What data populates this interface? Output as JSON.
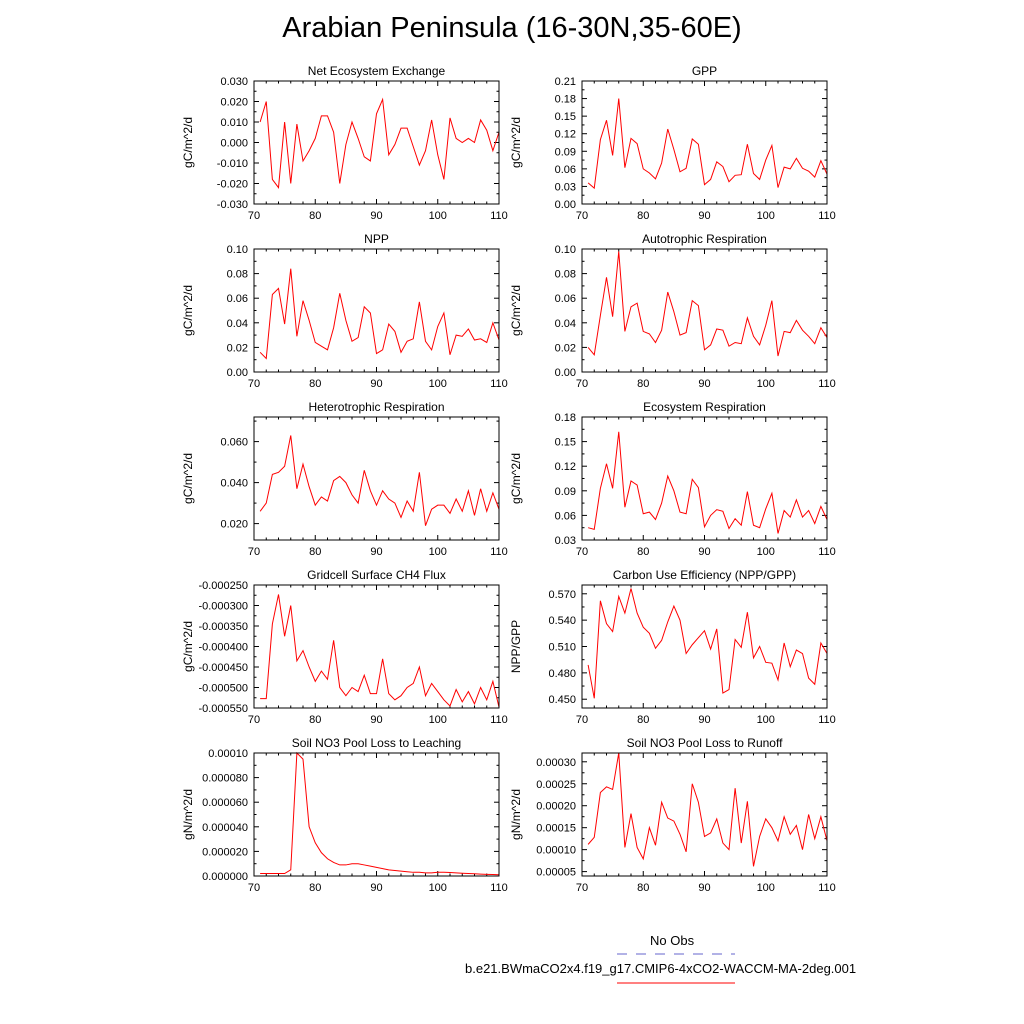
{
  "title": "Arabian Peninsula (16-30N,35-60E)",
  "colors": {
    "series": "#ff0000",
    "obs": "#6666cc",
    "axis": "#000000"
  },
  "legend": {
    "obs_label": "No Obs",
    "model_label": "b.e21.BWmaCO2x4.f19_g17.CMIP6-4xCO2-WACCM-MA-2deg.001"
  },
  "chart_data": [
    {
      "type": "line",
      "title": "Net Ecosystem Exchange",
      "ylabel": "gC/m^2/d",
      "xlim": [
        70,
        110
      ],
      "ylim": [
        -0.03,
        0.03
      ],
      "xticks": [
        70,
        80,
        90,
        100,
        110
      ],
      "yticks": [
        -0.03,
        -0.02,
        -0.01,
        0.0,
        0.01,
        0.02,
        0.03
      ],
      "ytick_labels": [
        "-0.030",
        "-0.020",
        "-0.010",
        "0.000",
        "0.010",
        "0.020",
        "0.030"
      ],
      "x": [
        71,
        72,
        73,
        74,
        75,
        76,
        77,
        78,
        79,
        80,
        81,
        82,
        83,
        84,
        85,
        86,
        87,
        88,
        89,
        90,
        91,
        92,
        93,
        94,
        95,
        96,
        97,
        98,
        99,
        100,
        101,
        102,
        103,
        104,
        105,
        106,
        107,
        108,
        109,
        110
      ],
      "values": [
        0.01,
        0.02,
        -0.018,
        -0.022,
        0.01,
        -0.02,
        0.009,
        -0.009,
        -0.004,
        0.002,
        0.013,
        0.013,
        0.005,
        -0.02,
        -0.001,
        0.01,
        0.002,
        -0.007,
        -0.009,
        0.014,
        0.021,
        -0.006,
        -0.001,
        0.007,
        0.007,
        -0.002,
        -0.011,
        -0.004,
        0.011,
        -0.006,
        -0.018,
        0.012,
        0.002,
        0.0,
        0.002,
        0.0,
        0.011,
        0.006,
        -0.004,
        0.005
      ]
    },
    {
      "type": "line",
      "title": "GPP",
      "ylabel": "gC/m^2/d",
      "xlim": [
        70,
        110
      ],
      "ylim": [
        0,
        0.21
      ],
      "xticks": [
        70,
        80,
        90,
        100,
        110
      ],
      "yticks": [
        0,
        0.03,
        0.06,
        0.09,
        0.12,
        0.15,
        0.18,
        0.21
      ],
      "ytick_labels": [
        "0.00",
        "0.03",
        "0.06",
        "0.09",
        "0.12",
        "0.15",
        "0.18",
        "0.21"
      ],
      "x": [
        71,
        72,
        73,
        74,
        75,
        76,
        77,
        78,
        79,
        80,
        81,
        82,
        83,
        84,
        85,
        86,
        87,
        88,
        89,
        90,
        91,
        92,
        93,
        94,
        95,
        96,
        97,
        98,
        99,
        100,
        101,
        102,
        103,
        104,
        105,
        106,
        107,
        108,
        109,
        110
      ],
      "values": [
        0.036,
        0.027,
        0.11,
        0.143,
        0.083,
        0.18,
        0.062,
        0.112,
        0.103,
        0.06,
        0.053,
        0.043,
        0.07,
        0.128,
        0.093,
        0.055,
        0.061,
        0.111,
        0.102,
        0.033,
        0.042,
        0.072,
        0.064,
        0.038,
        0.049,
        0.05,
        0.102,
        0.052,
        0.042,
        0.075,
        0.1,
        0.028,
        0.063,
        0.06,
        0.078,
        0.061,
        0.056,
        0.046,
        0.074,
        0.051
      ]
    },
    {
      "type": "line",
      "title": "NPP",
      "ylabel": "gC/m^2/d",
      "xlim": [
        70,
        110
      ],
      "ylim": [
        0,
        0.1
      ],
      "xticks": [
        70,
        80,
        90,
        100,
        110
      ],
      "yticks": [
        0,
        0.02,
        0.04,
        0.06,
        0.08,
        0.1
      ],
      "ytick_labels": [
        "0.00",
        "0.02",
        "0.04",
        "0.06",
        "0.08",
        "0.10"
      ],
      "x": [
        71,
        72,
        73,
        74,
        75,
        76,
        77,
        78,
        79,
        80,
        81,
        82,
        83,
        84,
        85,
        86,
        87,
        88,
        89,
        90,
        91,
        92,
        93,
        94,
        95,
        96,
        97,
        98,
        99,
        100,
        101,
        102,
        103,
        104,
        105,
        106,
        107,
        108,
        109,
        110
      ],
      "values": [
        0.016,
        0.011,
        0.063,
        0.068,
        0.039,
        0.084,
        0.029,
        0.058,
        0.042,
        0.024,
        0.021,
        0.018,
        0.036,
        0.064,
        0.042,
        0.025,
        0.028,
        0.053,
        0.048,
        0.015,
        0.018,
        0.039,
        0.033,
        0.016,
        0.025,
        0.027,
        0.057,
        0.025,
        0.018,
        0.037,
        0.048,
        0.014,
        0.03,
        0.029,
        0.035,
        0.026,
        0.027,
        0.024,
        0.04,
        0.026
      ]
    },
    {
      "type": "line",
      "title": "Autotrophic Respiration",
      "ylabel": "gC/m^2/d",
      "xlim": [
        70,
        110
      ],
      "ylim": [
        0,
        0.1
      ],
      "xticks": [
        70,
        80,
        90,
        100,
        110
      ],
      "yticks": [
        0,
        0.02,
        0.04,
        0.06,
        0.08,
        0.1
      ],
      "ytick_labels": [
        "0.00",
        "0.02",
        "0.04",
        "0.06",
        "0.08",
        "0.10"
      ],
      "x": [
        71,
        72,
        73,
        74,
        75,
        76,
        77,
        78,
        79,
        80,
        81,
        82,
        83,
        84,
        85,
        86,
        87,
        88,
        89,
        90,
        91,
        92,
        93,
        94,
        95,
        96,
        97,
        98,
        99,
        100,
        101,
        102,
        103,
        104,
        105,
        106,
        107,
        108,
        109,
        110
      ],
      "values": [
        0.02,
        0.014,
        0.046,
        0.077,
        0.045,
        0.098,
        0.033,
        0.053,
        0.056,
        0.033,
        0.031,
        0.024,
        0.034,
        0.065,
        0.049,
        0.03,
        0.032,
        0.058,
        0.054,
        0.018,
        0.022,
        0.035,
        0.034,
        0.021,
        0.024,
        0.023,
        0.044,
        0.029,
        0.022,
        0.038,
        0.058,
        0.013,
        0.033,
        0.032,
        0.042,
        0.034,
        0.029,
        0.023,
        0.036,
        0.028
      ]
    },
    {
      "type": "line",
      "title": "Heterotrophic Respiration",
      "ylabel": "gC/m^2/d",
      "xlim": [
        70,
        110
      ],
      "ylim": [
        0.012,
        0.072
      ],
      "xticks": [
        70,
        80,
        90,
        100,
        110
      ],
      "yticks": [
        0.02,
        0.04,
        0.06
      ],
      "ytick_labels": [
        "0.020",
        "0.040",
        "0.060"
      ],
      "x": [
        71,
        72,
        73,
        74,
        75,
        76,
        77,
        78,
        79,
        80,
        81,
        82,
        83,
        84,
        85,
        86,
        87,
        88,
        89,
        90,
        91,
        92,
        93,
        94,
        95,
        96,
        97,
        98,
        99,
        100,
        101,
        102,
        103,
        104,
        105,
        106,
        107,
        108,
        109,
        110
      ],
      "values": [
        0.026,
        0.03,
        0.044,
        0.045,
        0.048,
        0.063,
        0.037,
        0.049,
        0.038,
        0.029,
        0.033,
        0.031,
        0.041,
        0.043,
        0.04,
        0.034,
        0.03,
        0.046,
        0.036,
        0.029,
        0.036,
        0.032,
        0.03,
        0.023,
        0.031,
        0.026,
        0.045,
        0.019,
        0.027,
        0.029,
        0.029,
        0.025,
        0.032,
        0.026,
        0.036,
        0.024,
        0.037,
        0.026,
        0.035,
        0.027
      ]
    },
    {
      "type": "line",
      "title": "Ecosystem Respiration",
      "ylabel": "gC/m^2/d",
      "xlim": [
        70,
        110
      ],
      "ylim": [
        0.03,
        0.18
      ],
      "xticks": [
        70,
        80,
        90,
        100,
        110
      ],
      "yticks": [
        0.03,
        0.06,
        0.09,
        0.12,
        0.15,
        0.18
      ],
      "ytick_labels": [
        "0.03",
        "0.06",
        "0.09",
        "0.12",
        "0.15",
        "0.18"
      ],
      "x": [
        71,
        72,
        73,
        74,
        75,
        76,
        77,
        78,
        79,
        80,
        81,
        82,
        83,
        84,
        85,
        86,
        87,
        88,
        89,
        90,
        91,
        92,
        93,
        94,
        95,
        96,
        97,
        98,
        99,
        100,
        101,
        102,
        103,
        104,
        105,
        106,
        107,
        108,
        109,
        110
      ],
      "values": [
        0.045,
        0.043,
        0.093,
        0.123,
        0.093,
        0.162,
        0.07,
        0.102,
        0.097,
        0.062,
        0.064,
        0.055,
        0.075,
        0.108,
        0.09,
        0.064,
        0.062,
        0.104,
        0.094,
        0.046,
        0.06,
        0.067,
        0.065,
        0.044,
        0.056,
        0.048,
        0.089,
        0.048,
        0.045,
        0.068,
        0.087,
        0.038,
        0.066,
        0.058,
        0.079,
        0.058,
        0.066,
        0.05,
        0.071,
        0.055
      ]
    },
    {
      "type": "line",
      "title": "Gridcell Surface CH4 Flux",
      "ylabel": "gC/m^2/d",
      "xlim": [
        70,
        110
      ],
      "ylim": [
        -0.00055,
        -0.00025
      ],
      "xticks": [
        70,
        80,
        90,
        100,
        110
      ],
      "yticks": [
        -0.00055,
        -0.0005,
        -0.00045,
        -0.0004,
        -0.00035,
        -0.0003,
        -0.00025
      ],
      "ytick_labels": [
        "-0.000550",
        "-0.000500",
        "-0.000450",
        "-0.000400",
        "-0.000350",
        "-0.000300",
        "-0.000250"
      ],
      "x": [
        71,
        72,
        73,
        74,
        75,
        76,
        77,
        78,
        79,
        80,
        81,
        82,
        83,
        84,
        85,
        86,
        87,
        88,
        89,
        90,
        91,
        92,
        93,
        94,
        95,
        96,
        97,
        98,
        99,
        100,
        101,
        102,
        103,
        104,
        105,
        106,
        107,
        108,
        109,
        110
      ],
      "values": [
        -0.000527,
        -0.000527,
        -0.000345,
        -0.000273,
        -0.000375,
        -0.0003,
        -0.000435,
        -0.00041,
        -0.00045,
        -0.000485,
        -0.00046,
        -0.00048,
        -0.000385,
        -0.0005,
        -0.00052,
        -0.0005,
        -0.00051,
        -0.00047,
        -0.000515,
        -0.000515,
        -0.00043,
        -0.000515,
        -0.00053,
        -0.00052,
        -0.0005,
        -0.00049,
        -0.00045,
        -0.00052,
        -0.00049,
        -0.00051,
        -0.00053,
        -0.000545,
        -0.000505,
        -0.000535,
        -0.00051,
        -0.00054,
        -0.0005,
        -0.00053,
        -0.000485,
        -0.000548
      ]
    },
    {
      "type": "line",
      "title": "Carbon Use Efficiency (NPP/GPP)",
      "ylabel": "NPP/GPP",
      "xlim": [
        70,
        110
      ],
      "ylim": [
        0.44,
        0.58
      ],
      "xticks": [
        70,
        80,
        90,
        100,
        110
      ],
      "yticks": [
        0.45,
        0.48,
        0.51,
        0.54,
        0.57
      ],
      "ytick_labels": [
        "0.450",
        "0.480",
        "0.510",
        "0.540",
        "0.570"
      ],
      "x": [
        71,
        72,
        73,
        74,
        75,
        76,
        77,
        78,
        79,
        80,
        81,
        82,
        83,
        84,
        85,
        86,
        87,
        88,
        89,
        90,
        91,
        92,
        93,
        94,
        95,
        96,
        97,
        98,
        99,
        100,
        101,
        102,
        103,
        104,
        105,
        106,
        107,
        108,
        109,
        110
      ],
      "values": [
        0.489,
        0.451,
        0.562,
        0.536,
        0.527,
        0.567,
        0.548,
        0.576,
        0.548,
        0.532,
        0.525,
        0.508,
        0.517,
        0.538,
        0.556,
        0.54,
        0.502,
        0.512,
        0.52,
        0.528,
        0.507,
        0.53,
        0.457,
        0.461,
        0.518,
        0.509,
        0.549,
        0.497,
        0.51,
        0.492,
        0.491,
        0.472,
        0.514,
        0.487,
        0.506,
        0.502,
        0.474,
        0.467,
        0.514,
        0.502
      ]
    },
    {
      "type": "line",
      "title": "Soil NO3 Pool Loss to Leaching",
      "ylabel": "gN/m^2/d",
      "xlim": [
        70,
        110
      ],
      "ylim": [
        0,
        0.0001
      ],
      "xticks": [
        70,
        80,
        90,
        100,
        110
      ],
      "yticks": [
        0,
        2e-05,
        4e-05,
        6e-05,
        8e-05,
        0.0001
      ],
      "ytick_labels": [
        "0.000000",
        "0.000020",
        "0.000040",
        "0.000060",
        "0.000080",
        "0.00010"
      ],
      "x": [
        71,
        72,
        73,
        74,
        75,
        76,
        77,
        78,
        79,
        80,
        81,
        82,
        83,
        84,
        85,
        86,
        87,
        88,
        89,
        90,
        91,
        92,
        93,
        94,
        95,
        96,
        97,
        98,
        99,
        100,
        101,
        102,
        103,
        104,
        105,
        106,
        107,
        108,
        109,
        110
      ],
      "values": [
        2e-06,
        2e-06,
        2e-06,
        2e-06,
        2e-06,
        5e-06,
        0.0001,
        9.5e-05,
        4e-05,
        2.7e-05,
        1.9e-05,
        1.4e-05,
        1.1e-05,
        9e-06,
        9e-06,
        1e-05,
        1e-05,
        9e-06,
        8e-06,
        7e-06,
        6e-06,
        5e-06,
        4.5e-06,
        4e-06,
        3.5e-06,
        3e-06,
        3e-06,
        2.5e-06,
        2.5e-06,
        3e-06,
        3e-06,
        2.8e-06,
        2.5e-06,
        2.2e-06,
        2e-06,
        1.8e-06,
        1.5e-06,
        1.3e-06,
        1.2e-06,
        1e-06
      ]
    },
    {
      "type": "line",
      "title": "Soil NO3 Pool Loss to Runoff",
      "ylabel": "gN/m^2/d",
      "xlim": [
        70,
        110
      ],
      "ylim": [
        4e-05,
        0.00032
      ],
      "xticks": [
        70,
        80,
        90,
        100,
        110
      ],
      "yticks": [
        5e-05,
        0.0001,
        0.00015,
        0.0002,
        0.00025,
        0.0003
      ],
      "ytick_labels": [
        "0.00005",
        "0.00010",
        "0.00015",
        "0.00020",
        "0.00025",
        "0.00030"
      ],
      "x": [
        71,
        72,
        73,
        74,
        75,
        76,
        77,
        78,
        79,
        80,
        81,
        82,
        83,
        84,
        85,
        86,
        87,
        88,
        89,
        90,
        91,
        92,
        93,
        94,
        95,
        96,
        97,
        98,
        99,
        100,
        101,
        102,
        103,
        104,
        105,
        106,
        107,
        108,
        109,
        110
      ],
      "values": [
        0.000112,
        0.000128,
        0.00023,
        0.000243,
        0.000237,
        0.00032,
        0.000105,
        0.000182,
        0.000105,
        7.9e-05,
        0.00015,
        0.00011,
        0.000208,
        0.000172,
        0.000165,
        0.000135,
        9.5e-05,
        0.00025,
        0.000208,
        0.00013,
        0.000138,
        0.00017,
        0.000115,
        0.0001,
        0.00024,
        0.000115,
        0.00021,
        6.2e-05,
        0.00013,
        0.00017,
        0.00015,
        0.00012,
        0.000175,
        0.000135,
        0.000155,
        0.0001,
        0.00018,
        0.000125,
        0.000175,
        0.00012
      ]
    }
  ]
}
